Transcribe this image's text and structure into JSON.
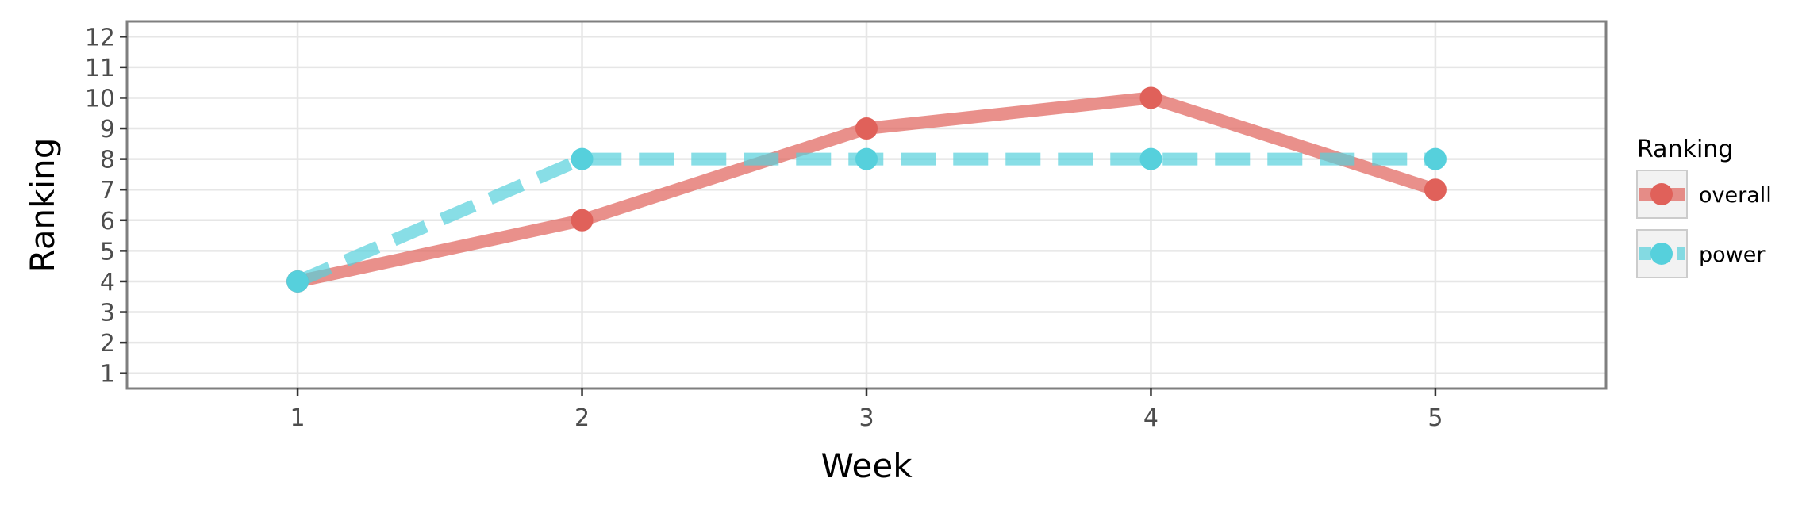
{
  "chart_data": {
    "type": "line",
    "title": "",
    "xlabel": "Week",
    "ylabel": "Ranking",
    "x": [
      1,
      2,
      3,
      4,
      5
    ],
    "x_ticks": [
      "1",
      "2",
      "3",
      "4",
      "5"
    ],
    "xlim": [
      0.4,
      5.6
    ],
    "y_ticks": [
      "1",
      "2",
      "3",
      "4",
      "5",
      "6",
      "7",
      "8",
      "9",
      "10",
      "11",
      "12"
    ],
    "ylim": [
      12.5,
      0.5
    ],
    "y_reversed": true,
    "grid": true,
    "legend": {
      "title": "Ranking",
      "position": "right"
    },
    "series": [
      {
        "name": "overall",
        "values": [
          4,
          6,
          9,
          10,
          7
        ],
        "color": "#e0615a",
        "line_style": "solid"
      },
      {
        "name": "power",
        "values": [
          4,
          8,
          8,
          8,
          8
        ],
        "color": "#56d0dc",
        "line_style": "dashed"
      }
    ]
  }
}
